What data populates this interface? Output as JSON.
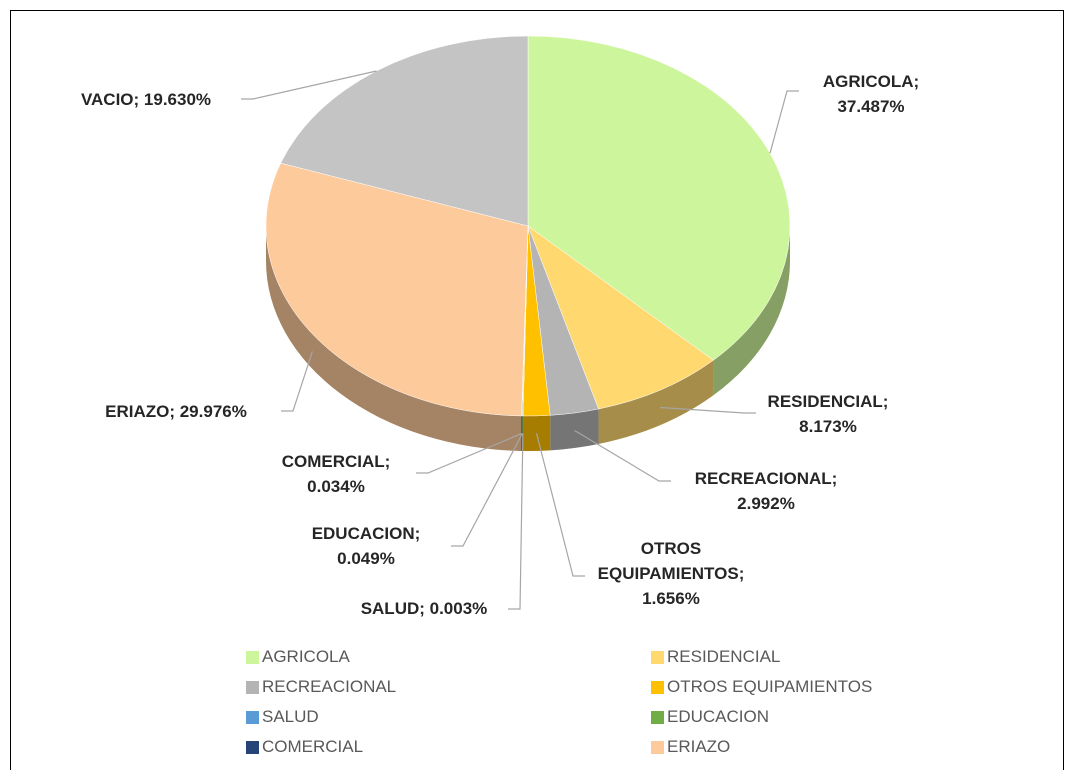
{
  "chart_data": {
    "type": "pie",
    "categories": [
      "AGRICOLA",
      "RESIDENCIAL",
      "RECREACIONAL",
      "OTROS EQUIPAMIENTOS",
      "SALUD",
      "EDUCACION",
      "COMERCIAL",
      "ERIAZO",
      "VACIO"
    ],
    "values": [
      37.487,
      8.173,
      2.992,
      1.656,
      0.003,
      0.049,
      0.034,
      29.976,
      19.63
    ],
    "value_labels": [
      "AGRICOLA; 37.487%",
      "RESIDENCIAL; 8.173%",
      "RECREACIONAL; 2.992%",
      "OTROS EQUIPAMIENTOS; 1.656%",
      "SALUD; 0.003%",
      "EDUCACION; 0.049%",
      "COMERCIAL; 0.034%",
      "ERIAZO; 29.976%",
      "VACIO; 19.630%"
    ],
    "colors": [
      "#ccf59c",
      "#ffd970",
      "#b4b4b4",
      "#ffc000",
      "#5b9bd5",
      "#70ad47",
      "#264478",
      "#fdca9c",
      "#c4c4c4"
    ],
    "legend": "bottom"
  }
}
